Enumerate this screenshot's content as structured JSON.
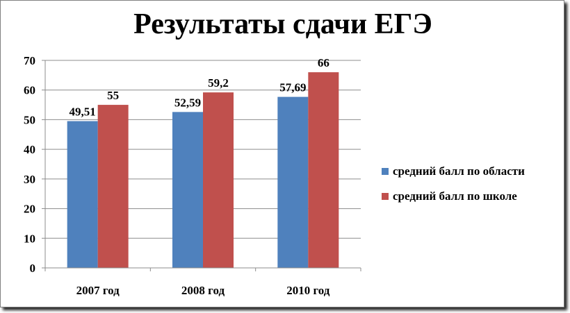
{
  "chart_data": {
    "type": "bar",
    "title": "Результаты сдачи ЕГЭ",
    "categories": [
      "2007 год",
      "2008 год",
      "2010 год"
    ],
    "series": [
      {
        "name": "средний балл по области",
        "values": [
          49.51,
          52.59,
          57.69
        ],
        "labels": [
          "49,51",
          "52,59",
          "57,69"
        ],
        "color": "#4f81bd"
      },
      {
        "name": "средний балл по школе",
        "values": [
          55,
          59.2,
          66
        ],
        "labels": [
          "55",
          "59,2",
          "66"
        ],
        "color": "#c0504d"
      }
    ],
    "ylim": [
      0,
      70
    ],
    "yticks": [
      "0",
      "10",
      "20",
      "30",
      "40",
      "50",
      "60",
      "70"
    ],
    "ytick_values": [
      0,
      10,
      20,
      30,
      40,
      50,
      60,
      70
    ],
    "grid": true,
    "legend_position": "right",
    "xlabel": "",
    "ylabel": ""
  }
}
